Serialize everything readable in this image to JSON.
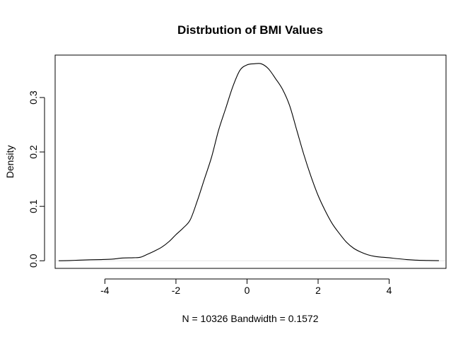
{
  "chart_data": {
    "type": "line",
    "title": "Distrbution of BMI Values",
    "xlabel": "N = 10326   Bandwidth = 0.1572",
    "ylabel": "Density",
    "xlim": [
      -5.4,
      5.6
    ],
    "ylim": [
      -0.014,
      0.378
    ],
    "x_ticks": [
      -4,
      -2,
      0,
      2,
      4
    ],
    "x_tick_labels": [
      "-4",
      "-2",
      "0",
      "2",
      "4"
    ],
    "y_ticks": [
      0.0,
      0.1,
      0.2,
      0.3
    ],
    "y_tick_labels": [
      "0.0",
      "0.1",
      "0.2",
      "0.3"
    ],
    "grid": false,
    "series": [
      {
        "line_color": "#000000",
        "x": [
          -5.3,
          -5.0,
          -4.7,
          -4.4,
          -4.1,
          -3.8,
          -3.5,
          -3.2,
          -3.0,
          -2.8,
          -2.6,
          -2.4,
          -2.2,
          -2.0,
          -1.8,
          -1.6,
          -1.4,
          -1.2,
          -1.0,
          -0.8,
          -0.6,
          -0.4,
          -0.2,
          0.0,
          0.2,
          0.4,
          0.6,
          0.8,
          1.0,
          1.2,
          1.4,
          1.6,
          1.8,
          2.0,
          2.2,
          2.4,
          2.6,
          2.8,
          3.0,
          3.2,
          3.4,
          3.6,
          3.8,
          4.0,
          4.2,
          4.5,
          4.8,
          5.1,
          5.4
        ],
        "y": [
          0.0,
          0.0004,
          0.0012,
          0.0018,
          0.0022,
          0.003,
          0.005,
          0.0055,
          0.0065,
          0.012,
          0.018,
          0.025,
          0.035,
          0.048,
          0.06,
          0.075,
          0.11,
          0.15,
          0.19,
          0.24,
          0.28,
          0.32,
          0.35,
          0.36,
          0.362,
          0.362,
          0.353,
          0.335,
          0.315,
          0.285,
          0.24,
          0.195,
          0.155,
          0.12,
          0.092,
          0.068,
          0.05,
          0.034,
          0.023,
          0.016,
          0.011,
          0.008,
          0.0065,
          0.0055,
          0.004,
          0.0022,
          0.001,
          0.0005,
          0.0002
        ]
      }
    ]
  }
}
